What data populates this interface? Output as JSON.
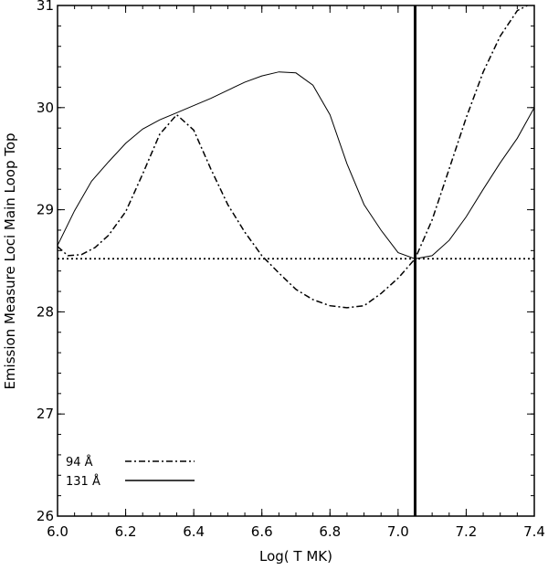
{
  "chart_data": {
    "type": "line",
    "xlabel": "Log( T MK)",
    "ylabel": "Emission Measure Loci Main Loop Top",
    "xlim": [
      6.0,
      7.4
    ],
    "ylim": [
      26,
      31
    ],
    "xticks": [
      6.0,
      6.2,
      6.4,
      6.6,
      6.8,
      7.0,
      7.2,
      7.4
    ],
    "xtick_labels": [
      "6.0",
      "6.2",
      "6.4",
      "6.6",
      "6.8",
      "7.0",
      "7.2",
      "7.4"
    ],
    "yticks": [
      26,
      27,
      28,
      29,
      30,
      31
    ],
    "ytick_labels": [
      "26",
      "27",
      "28",
      "29",
      "30",
      "31"
    ],
    "grid": false,
    "legend_position": "bottom-left",
    "series": [
      {
        "name": "94 Å",
        "style": "dash-dot",
        "color": "#000000",
        "x": [
          6.0,
          6.03,
          6.07,
          6.11,
          6.15,
          6.2,
          6.25,
          6.3,
          6.35,
          6.4,
          6.45,
          6.5,
          6.55,
          6.6,
          6.65,
          6.7,
          6.75,
          6.8,
          6.85,
          6.9,
          6.95,
          7.0,
          7.05,
          7.1,
          7.15,
          7.2,
          7.25,
          7.3,
          7.35,
          7.38
        ],
        "y": [
          28.64,
          28.55,
          28.56,
          28.63,
          28.75,
          28.98,
          29.35,
          29.74,
          29.93,
          29.78,
          29.4,
          29.05,
          28.78,
          28.55,
          28.38,
          28.22,
          28.12,
          28.06,
          28.04,
          28.06,
          28.18,
          28.33,
          28.52,
          28.9,
          29.4,
          29.9,
          30.35,
          30.7,
          30.95,
          31.0
        ]
      },
      {
        "name": "131 Å",
        "style": "solid",
        "color": "#000000",
        "x": [
          6.0,
          6.05,
          6.1,
          6.15,
          6.2,
          6.25,
          6.3,
          6.35,
          6.4,
          6.45,
          6.5,
          6.55,
          6.6,
          6.65,
          6.7,
          6.75,
          6.8,
          6.85,
          6.9,
          6.95,
          7.0,
          7.05,
          7.1,
          7.15,
          7.2,
          7.25,
          7.3,
          7.35,
          7.4
        ],
        "y": [
          28.65,
          28.99,
          29.28,
          29.47,
          29.65,
          29.79,
          29.88,
          29.95,
          30.02,
          30.09,
          30.17,
          30.25,
          30.31,
          30.35,
          30.34,
          30.22,
          29.93,
          29.45,
          29.05,
          28.8,
          28.58,
          28.52,
          28.55,
          28.7,
          28.93,
          29.2,
          29.46,
          29.7,
          30.0
        ]
      }
    ],
    "reference_lines": [
      {
        "orientation": "horizontal",
        "value": 28.52,
        "style": "dotted"
      },
      {
        "orientation": "vertical",
        "value": 7.05,
        "style": "solid-thick"
      }
    ]
  }
}
